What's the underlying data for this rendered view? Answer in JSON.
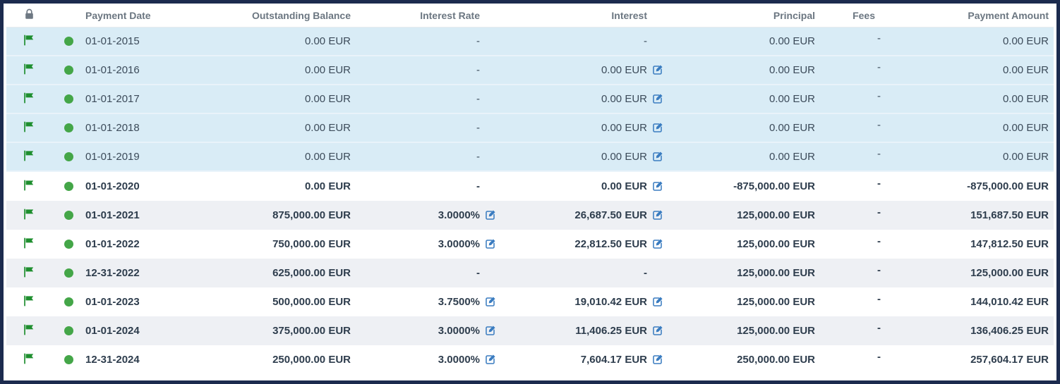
{
  "table": {
    "headers": {
      "lock": "",
      "date": "Payment Date",
      "balance": "Outstanding Balance",
      "rate": "Interest Rate",
      "interest": "Interest",
      "principal": "Principal",
      "fees": "Fees",
      "amount": "Payment Amount"
    },
    "icons": {
      "header_lock": "lock-icon",
      "row_flag": "flag-icon",
      "row_status": "status-dot-icon",
      "edit": "edit-icon"
    },
    "colors": {
      "frame_border": "#1c2b4e",
      "row_blue_bg": "#d9ecf6",
      "row_gray_bg": "#eef0f4",
      "header_text": "#6b7681",
      "body_text": "#3c4b5a",
      "bold_text": "#2e3d4d",
      "flag_green": "#1e8e2e",
      "dot_green": "#44a648",
      "edit_blue": "#3a7cc0",
      "lock_gray": "#6e7883"
    },
    "rows": [
      {
        "date": "01-01-2015",
        "balance": "0.00 EUR",
        "rate": "-",
        "rate_edit": false,
        "interest": "-",
        "interest_edit": false,
        "principal": "0.00 EUR",
        "fees": "-",
        "amount": "0.00 EUR",
        "bold": false,
        "bg": "blue",
        "flag": "green",
        "status": "green"
      },
      {
        "date": "01-01-2016",
        "balance": "0.00 EUR",
        "rate": "-",
        "rate_edit": false,
        "interest": "0.00 EUR",
        "interest_edit": true,
        "principal": "0.00 EUR",
        "fees": "-",
        "amount": "0.00 EUR",
        "bold": false,
        "bg": "blue",
        "flag": "green",
        "status": "green"
      },
      {
        "date": "01-01-2017",
        "balance": "0.00 EUR",
        "rate": "-",
        "rate_edit": false,
        "interest": "0.00 EUR",
        "interest_edit": true,
        "principal": "0.00 EUR",
        "fees": "-",
        "amount": "0.00 EUR",
        "bold": false,
        "bg": "blue",
        "flag": "green",
        "status": "green"
      },
      {
        "date": "01-01-2018",
        "balance": "0.00 EUR",
        "rate": "-",
        "rate_edit": false,
        "interest": "0.00 EUR",
        "interest_edit": true,
        "principal": "0.00 EUR",
        "fees": "-",
        "amount": "0.00 EUR",
        "bold": false,
        "bg": "blue",
        "flag": "green",
        "status": "green"
      },
      {
        "date": "01-01-2019",
        "balance": "0.00 EUR",
        "rate": "-",
        "rate_edit": false,
        "interest": "0.00 EUR",
        "interest_edit": true,
        "principal": "0.00 EUR",
        "fees": "-",
        "amount": "0.00 EUR",
        "bold": false,
        "bg": "blue",
        "flag": "green",
        "status": "green"
      },
      {
        "date": "01-01-2020",
        "balance": "0.00 EUR",
        "rate": "-",
        "rate_edit": false,
        "interest": "0.00 EUR",
        "interest_edit": true,
        "principal": "-875,000.00 EUR",
        "fees": "-",
        "amount": "-875,000.00 EUR",
        "bold": true,
        "bg": "white",
        "flag": "green",
        "status": "green"
      },
      {
        "date": "01-01-2021",
        "balance": "875,000.00 EUR",
        "rate": "3.0000%",
        "rate_edit": true,
        "interest": "26,687.50 EUR",
        "interest_edit": true,
        "principal": "125,000.00 EUR",
        "fees": "-",
        "amount": "151,687.50 EUR",
        "bold": true,
        "bg": "gray",
        "flag": "green",
        "status": "green"
      },
      {
        "date": "01-01-2022",
        "balance": "750,000.00 EUR",
        "rate": "3.0000%",
        "rate_edit": true,
        "interest": "22,812.50 EUR",
        "interest_edit": true,
        "principal": "125,000.00 EUR",
        "fees": "-",
        "amount": "147,812.50 EUR",
        "bold": true,
        "bg": "white",
        "flag": "green",
        "status": "green"
      },
      {
        "date": "12-31-2022",
        "balance": "625,000.00 EUR",
        "rate": "-",
        "rate_edit": false,
        "interest": "-",
        "interest_edit": false,
        "principal": "125,000.00 EUR",
        "fees": "-",
        "amount": "125,000.00 EUR",
        "bold": true,
        "bg": "gray",
        "flag": "green",
        "status": "green"
      },
      {
        "date": "01-01-2023",
        "balance": "500,000.00 EUR",
        "rate": "3.7500%",
        "rate_edit": true,
        "interest": "19,010.42 EUR",
        "interest_edit": true,
        "principal": "125,000.00 EUR",
        "fees": "-",
        "amount": "144,010.42 EUR",
        "bold": true,
        "bg": "white",
        "flag": "green",
        "status": "green"
      },
      {
        "date": "01-01-2024",
        "balance": "375,000.00 EUR",
        "rate": "3.0000%",
        "rate_edit": true,
        "interest": "11,406.25 EUR",
        "interest_edit": true,
        "principal": "125,000.00 EUR",
        "fees": "-",
        "amount": "136,406.25 EUR",
        "bold": true,
        "bg": "gray",
        "flag": "green",
        "status": "green"
      },
      {
        "date": "12-31-2024",
        "balance": "250,000.00 EUR",
        "rate": "3.0000%",
        "rate_edit": true,
        "interest": "7,604.17 EUR",
        "interest_edit": true,
        "principal": "250,000.00 EUR",
        "fees": "-",
        "amount": "257,604.17 EUR",
        "bold": true,
        "bg": "white",
        "flag": "green",
        "status": "green"
      }
    ]
  }
}
